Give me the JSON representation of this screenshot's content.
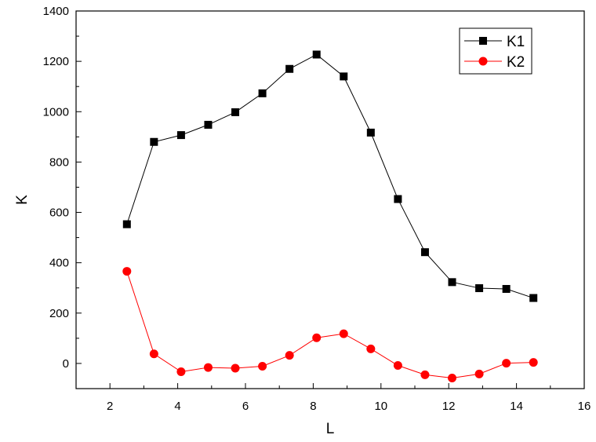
{
  "chart_data": {
    "type": "line",
    "xlabel": "L",
    "ylabel": "K",
    "xlim": [
      1,
      16
    ],
    "ylim": [
      -100,
      1400
    ],
    "x_ticks": [
      2,
      4,
      6,
      8,
      10,
      12,
      14,
      16
    ],
    "y_ticks": [
      0,
      200,
      400,
      600,
      800,
      1000,
      1200,
      1400
    ],
    "x_tick_labels": [
      "2",
      "4",
      "6",
      "8",
      "10",
      "12",
      "14",
      "16"
    ],
    "y_tick_labels": [
      "0",
      "200",
      "400",
      "600",
      "800",
      "1000",
      "1200",
      "1400"
    ],
    "grid": false,
    "legend": "top-right",
    "x": [
      2.5,
      3.3,
      4.1,
      4.9,
      5.7,
      6.5,
      7.3,
      8.1,
      8.9,
      9.7,
      10.5,
      11.3,
      12.1,
      12.9,
      13.7,
      14.5
    ],
    "series": [
      {
        "name": "K1",
        "color": "#000000",
        "marker": "square",
        "values": [
          553,
          880,
          907,
          948,
          998,
          1073,
          1170,
          1227,
          1140,
          917,
          653,
          442,
          323,
          299,
          296,
          260
        ]
      },
      {
        "name": "K2",
        "color": "#ff0000",
        "marker": "circle",
        "values": [
          366,
          38,
          -33,
          -16,
          -19,
          -11,
          32,
          102,
          118,
          58,
          -8,
          -45,
          -58,
          -42,
          1,
          4
        ]
      }
    ]
  }
}
